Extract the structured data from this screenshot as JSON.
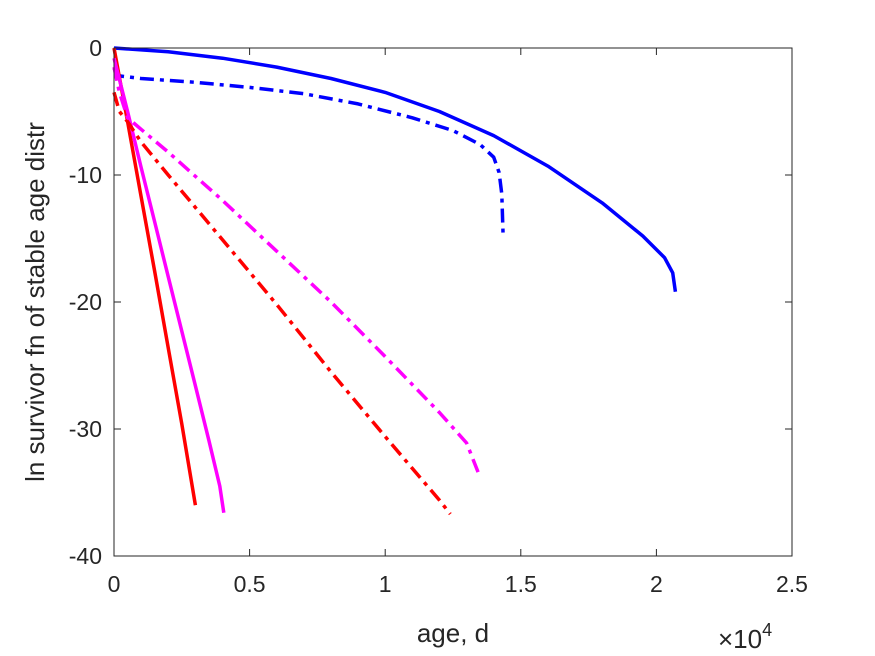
{
  "chart_data": {
    "type": "line",
    "title": "",
    "xlabel": "age, d",
    "ylabel": "ln survivor fn of stable age distr",
    "x_exponent_label": {
      "base": "×10",
      "exp": "4"
    },
    "xlim": [
      0,
      25000
    ],
    "ylim": [
      -40,
      0
    ],
    "xticks": [
      0,
      5000,
      10000,
      15000,
      20000,
      25000
    ],
    "xtick_labels": [
      "0",
      "0.5",
      "1",
      "1.5",
      "2",
      "2.5"
    ],
    "yticks": [
      0,
      -10,
      -20,
      -30,
      -40
    ],
    "ytick_labels": [
      "0",
      "-10",
      "-20",
      "-30",
      "-40"
    ],
    "grid": false,
    "series": [
      {
        "color": "#0000ff",
        "style": "solid",
        "x": [
          0,
          2000,
          4000,
          6000,
          8000,
          10000,
          12000,
          14000,
          16000,
          18000,
          19500,
          20300,
          20600,
          20700
        ],
        "y": [
          0,
          -0.3,
          -0.8,
          -1.5,
          -2.4,
          -3.5,
          -5.0,
          -6.9,
          -9.3,
          -12.2,
          -14.8,
          -16.5,
          -17.7,
          -19.2
        ]
      },
      {
        "color": "#0000ff",
        "style": "dashdot",
        "x": [
          0,
          200,
          1000,
          3000,
          5000,
          7000,
          9000,
          11000,
          12500,
          13500,
          14000,
          14200,
          14300,
          14350
        ],
        "y": [
          -1.6,
          -2.2,
          -2.4,
          -2.7,
          -3.1,
          -3.6,
          -4.4,
          -5.5,
          -6.5,
          -7.6,
          -8.6,
          -9.8,
          -11.5,
          -15.0
        ]
      },
      {
        "color": "#ff0000",
        "style": "solid",
        "x": [
          0,
          500,
          1000,
          1500,
          2000,
          2500,
          3000
        ],
        "y": [
          0,
          -5.8,
          -11.7,
          -17.6,
          -23.6,
          -29.6,
          -36.0
        ]
      },
      {
        "color": "#ff00ff",
        "style": "solid",
        "x": [
          0,
          500,
          1000,
          1500,
          2000,
          2500,
          3000,
          3500,
          3900,
          4050
        ],
        "y": [
          -0.8,
          -5.0,
          -9.4,
          -13.7,
          -18.0,
          -22.3,
          -26.6,
          -30.9,
          -34.5,
          -36.6
        ]
      },
      {
        "color": "#ff0000",
        "style": "dashdot",
        "x": [
          0,
          200,
          500,
          1000,
          2000,
          4000,
          6000,
          8000,
          10000,
          11000,
          12000,
          12400
        ],
        "y": [
          -3.5,
          -5.0,
          -5.8,
          -7.4,
          -10.0,
          -15.1,
          -20.2,
          -25.5,
          -30.6,
          -33.1,
          -35.6,
          -36.7
        ]
      },
      {
        "color": "#ff00ff",
        "style": "dashdot",
        "x": [
          0,
          200,
          500,
          1000,
          2000,
          4000,
          6000,
          8000,
          10000,
          12000,
          13000,
          13500
        ],
        "y": [
          -1.5,
          -3.5,
          -5.5,
          -6.4,
          -8.2,
          -12.0,
          -16.0,
          -20.0,
          -24.3,
          -28.7,
          -31.1,
          -33.8
        ]
      }
    ]
  }
}
